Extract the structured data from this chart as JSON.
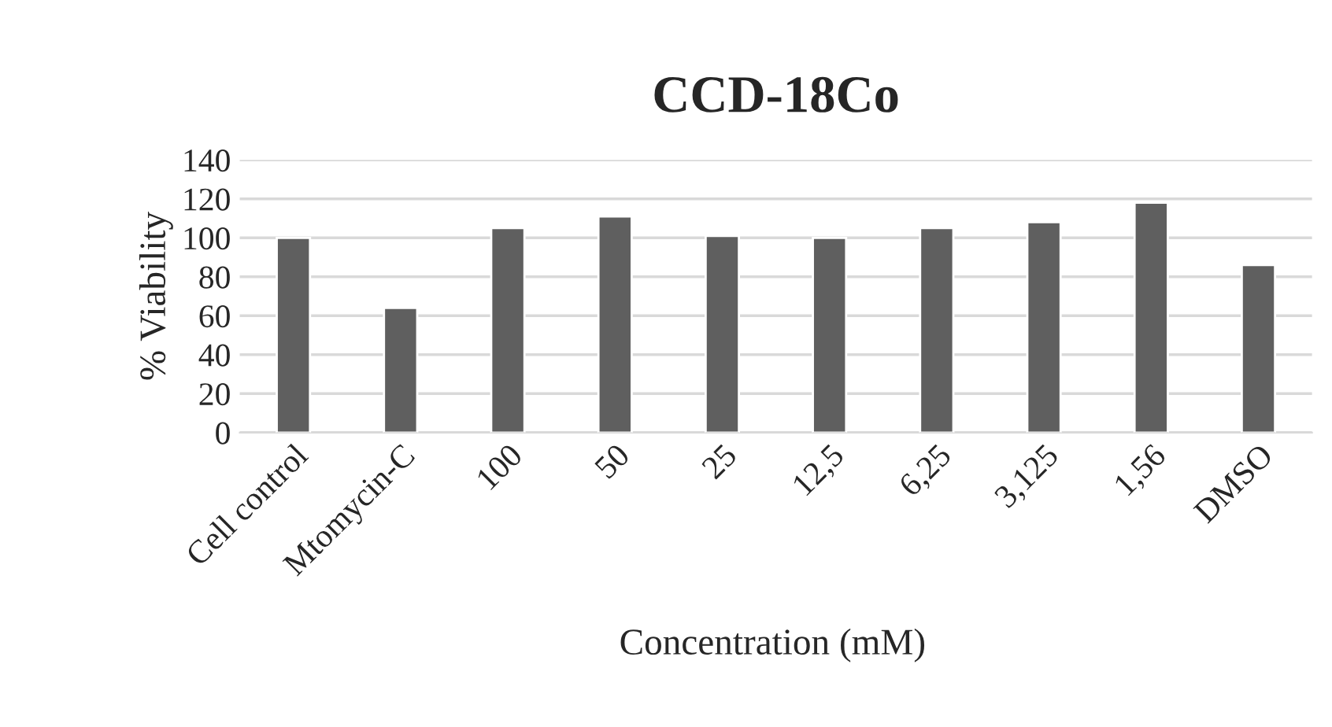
{
  "chart_data": {
    "type": "bar",
    "title": "CCD-18Co",
    "xlabel": "Concentration (mM)",
    "ylabel": "% Viability",
    "categories": [
      "Cell control",
      "Mtomycin-C",
      "100",
      "50",
      "25",
      "12,5",
      "6,25",
      "3,125",
      "1,56",
      "DMSO"
    ],
    "values": [
      100,
      64,
      105,
      111,
      101,
      100,
      105,
      108,
      118,
      86
    ],
    "color": "#5f5f5f",
    "ylim": [
      0,
      140
    ],
    "yticks": [
      0,
      20,
      40,
      60,
      80,
      100,
      120,
      140
    ],
    "grid": "y",
    "legend": false
  }
}
